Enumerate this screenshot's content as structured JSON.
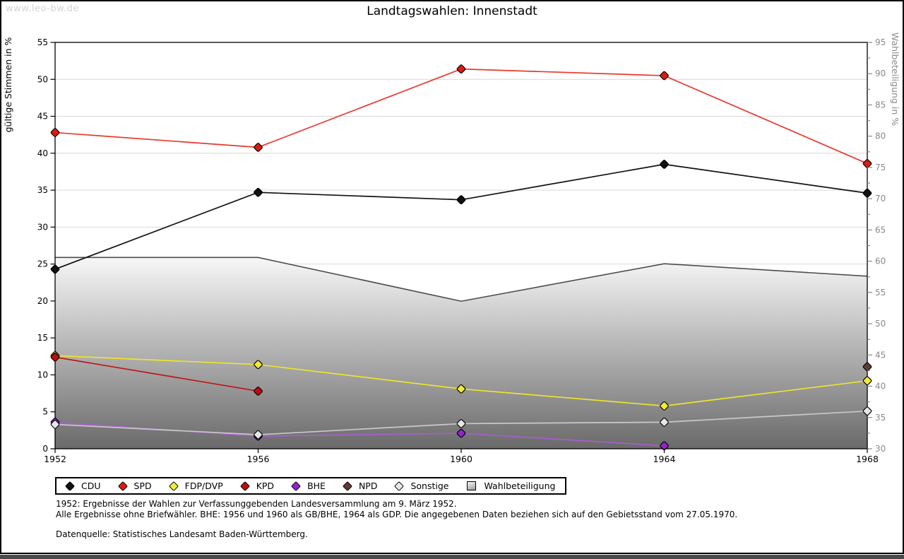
{
  "page": {
    "watermark": "www.leo-bw.de",
    "title": "Landtagswahlen: Innenstadt"
  },
  "chart_data": {
    "type": "line",
    "title": "Landtagswahlen: Innenstadt",
    "x_categories": [
      1952,
      1956,
      1960,
      1964,
      1968
    ],
    "axes": {
      "left": {
        "label": "gültige Stimmen in %",
        "min": 0,
        "max": 55,
        "tick_step": 5
      },
      "right": {
        "label": "Wahlbeteiligung in %",
        "min": 30,
        "max": 95,
        "tick_step": 5,
        "minor_tick_step": 2.5
      }
    },
    "grid": true,
    "legend_position": "bottom",
    "series": [
      {
        "name": "CDU",
        "axis": "left",
        "style": "line",
        "line_color": "#111111",
        "marker_color": "#111111",
        "values": [
          24.3,
          34.7,
          33.7,
          38.5,
          34.6
        ]
      },
      {
        "name": "SPD",
        "axis": "left",
        "style": "line",
        "line_color": "#e8392e",
        "marker_color": "#dd1a12",
        "values": [
          42.8,
          40.8,
          51.4,
          50.5,
          38.6
        ]
      },
      {
        "name": "FDP/DVP",
        "axis": "left",
        "style": "line",
        "line_color": "#ece42c",
        "marker_color": "#f2ea39",
        "values": [
          12.6,
          11.4,
          8.1,
          5.8,
          9.2
        ]
      },
      {
        "name": "KPD",
        "axis": "left",
        "style": "line",
        "line_color": "#c31414",
        "marker_color": "#bb0f0b",
        "values": [
          12.4,
          7.8,
          null,
          null,
          null
        ]
      },
      {
        "name": "BHE",
        "axis": "left",
        "style": "line",
        "line_color": "#a55fcf",
        "marker_color": "#9423c9",
        "values": [
          3.6,
          1.7,
          2.1,
          0.4,
          null
        ]
      },
      {
        "name": "NPD",
        "axis": "left",
        "style": "line",
        "line_color": "#5e3d33",
        "marker_color": "#5e3d33",
        "values": [
          null,
          null,
          null,
          null,
          11.1
        ]
      },
      {
        "name": "Sonstige",
        "axis": "left",
        "style": "line",
        "line_color": "#c9c9c9",
        "marker_color": "#e6e6e6",
        "values": [
          3.3,
          1.9,
          3.4,
          3.6,
          5.1
        ]
      },
      {
        "name": "Wahlbeteiligung",
        "axis": "right",
        "style": "area",
        "line_color": "#4d4d4d",
        "fill_gradient": [
          "#f7f7f7",
          "#6a6a6a"
        ],
        "values": [
          60.6,
          60.6,
          53.6,
          59.6,
          57.6
        ]
      }
    ]
  },
  "footnotes": [
    "1952: Ergebnisse der Wahlen zur Verfassunggebenden Landesversammlung am 9. März 1952.",
    "Alle Ergebnisse ohne Briefwähler. BHE: 1956 und 1960 als GB/BHE, 1964 als GDP. Die angegebenen Daten beziehen sich auf den Gebietsstand vom 27.05.1970.",
    "Datenquelle: Statistisches Landesamt Baden-Württemberg."
  ]
}
